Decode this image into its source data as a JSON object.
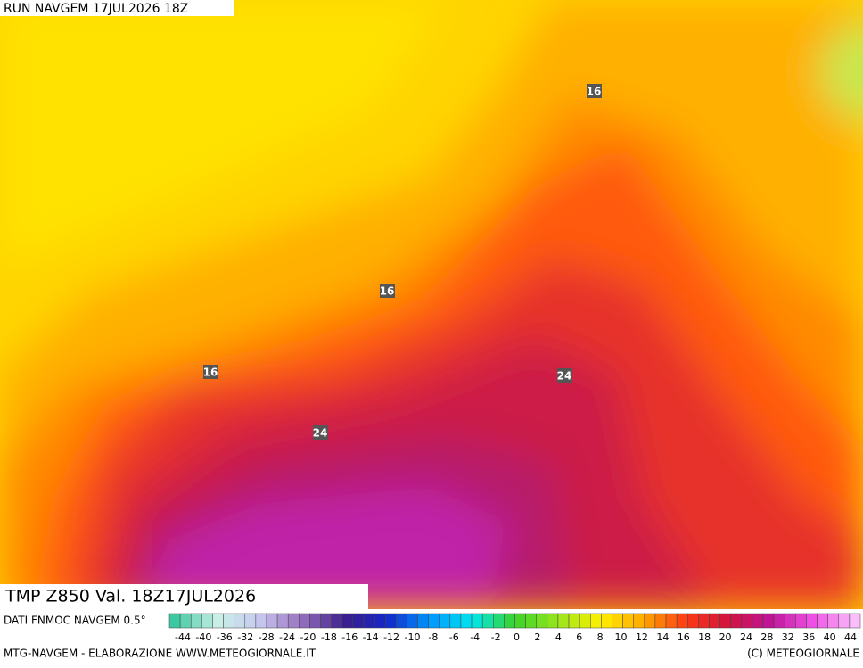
{
  "header": {
    "run": "RUN NAVGEM 17JUL2026 18Z"
  },
  "map": {
    "labels": [
      "16",
      "16",
      "16",
      "24",
      "24"
    ]
  },
  "title": "TMP  Z850  Val. 18Z17JUL2026",
  "source": "DATI FNMOC NAVGEM 0.5°",
  "colorbar": {
    "ticks": [
      -44,
      -40,
      -36,
      -32,
      -28,
      -24,
      -20,
      -18,
      -16,
      -14,
      -12,
      -10,
      -8,
      -6,
      -4,
      -2,
      0,
      2,
      4,
      6,
      8,
      10,
      12,
      14,
      16,
      18,
      20,
      24,
      28,
      32,
      36,
      40,
      44
    ]
  },
  "footer": {
    "left": "MTG-NAVGEM - ELABORAZIONE WWW.METEOGIORNALE.IT",
    "right": "(C) METEOGIORNALE"
  }
}
